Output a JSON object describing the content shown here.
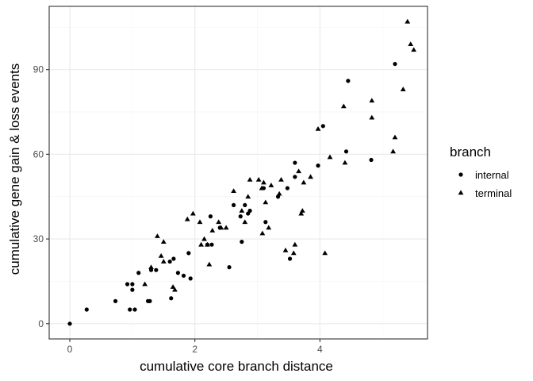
{
  "chart_data": {
    "type": "scatter",
    "xlabel": "cumulative core branch distance",
    "ylabel": "cumulative gene gain & loss events",
    "xlim": [
      -0.33,
      5.72
    ],
    "ylim": [
      -5.4,
      112.4
    ],
    "x_ticks": [
      0,
      2,
      4
    ],
    "y_ticks": [
      0,
      30,
      60,
      90
    ],
    "grid": true,
    "legend": {
      "title": "branch",
      "position": "right"
    },
    "series": [
      {
        "name": "internal",
        "marker": "circle",
        "points": [
          [
            0.0,
            0
          ],
          [
            0.27,
            5
          ],
          [
            0.73,
            8
          ],
          [
            0.96,
            5
          ],
          [
            1.04,
            5
          ],
          [
            1.0,
            12
          ],
          [
            1.1,
            18
          ],
          [
            0.92,
            14
          ],
          [
            1.0,
            14
          ],
          [
            1.25,
            8
          ],
          [
            1.28,
            8
          ],
          [
            1.3,
            19
          ],
          [
            1.38,
            19
          ],
          [
            1.6,
            22
          ],
          [
            1.66,
            23
          ],
          [
            1.62,
            9
          ],
          [
            1.73,
            18
          ],
          [
            1.82,
            17
          ],
          [
            1.9,
            25
          ],
          [
            1.93,
            16
          ],
          [
            2.2,
            28
          ],
          [
            2.27,
            28
          ],
          [
            2.25,
            38
          ],
          [
            2.4,
            34
          ],
          [
            2.55,
            20
          ],
          [
            2.62,
            42
          ],
          [
            2.73,
            38
          ],
          [
            2.75,
            29
          ],
          [
            2.8,
            42
          ],
          [
            2.85,
            39
          ],
          [
            2.88,
            40
          ],
          [
            3.1,
            48
          ],
          [
            3.13,
            36
          ],
          [
            3.33,
            45
          ],
          [
            3.48,
            48
          ],
          [
            3.52,
            23
          ],
          [
            3.6,
            57
          ],
          [
            3.6,
            52
          ],
          [
            3.97,
            56
          ],
          [
            4.05,
            70
          ],
          [
            4.42,
            61
          ],
          [
            4.45,
            86
          ],
          [
            4.82,
            58
          ],
          [
            5.2,
            92
          ]
        ]
      },
      {
        "name": "terminal",
        "marker": "triangle",
        "points": [
          [
            1.2,
            14
          ],
          [
            1.3,
            20
          ],
          [
            1.4,
            31
          ],
          [
            1.46,
            24
          ],
          [
            1.5,
            29
          ],
          [
            1.5,
            22
          ],
          [
            1.65,
            13
          ],
          [
            1.68,
            12
          ],
          [
            1.88,
            37
          ],
          [
            1.97,
            39
          ],
          [
            2.08,
            36
          ],
          [
            2.1,
            28
          ],
          [
            2.15,
            30
          ],
          [
            2.2,
            28
          ],
          [
            2.23,
            21
          ],
          [
            2.28,
            33
          ],
          [
            2.38,
            36
          ],
          [
            2.42,
            34
          ],
          [
            2.5,
            34
          ],
          [
            2.62,
            47
          ],
          [
            2.75,
            40
          ],
          [
            2.8,
            36
          ],
          [
            2.85,
            45
          ],
          [
            2.88,
            51
          ],
          [
            3.02,
            51
          ],
          [
            3.07,
            48
          ],
          [
            3.08,
            32
          ],
          [
            3.1,
            50
          ],
          [
            3.13,
            43
          ],
          [
            3.18,
            34
          ],
          [
            3.22,
            49
          ],
          [
            3.38,
            51
          ],
          [
            3.35,
            46
          ],
          [
            3.45,
            26
          ],
          [
            3.58,
            25
          ],
          [
            3.6,
            28
          ],
          [
            3.66,
            54
          ],
          [
            3.7,
            39
          ],
          [
            3.72,
            40
          ],
          [
            3.74,
            50
          ],
          [
            3.85,
            52
          ],
          [
            3.97,
            69
          ],
          [
            4.08,
            25
          ],
          [
            4.16,
            59
          ],
          [
            4.38,
            77
          ],
          [
            4.4,
            57
          ],
          [
            4.83,
            79
          ],
          [
            4.83,
            73
          ],
          [
            5.17,
            61
          ],
          [
            5.2,
            66
          ],
          [
            5.33,
            83
          ],
          [
            5.4,
            107
          ],
          [
            5.45,
            99
          ],
          [
            5.5,
            97
          ]
        ]
      }
    ]
  },
  "colors": {
    "panel_border": "#333333",
    "grid_major": "#ebebeb",
    "grid_minor": "#f5f5f5",
    "points": "#000000"
  }
}
